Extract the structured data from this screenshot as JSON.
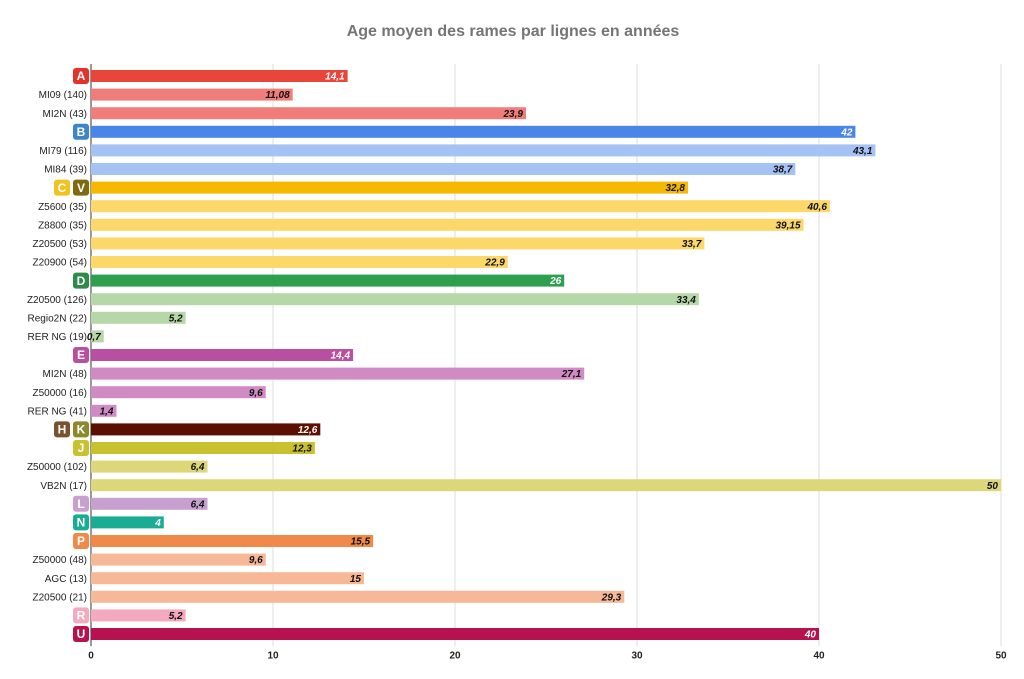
{
  "chart_data": {
    "type": "bar",
    "orientation": "horizontal",
    "title": "Age moyen des rames par lignes en années",
    "categories": [
      "A",
      "MI09 (140)",
      "MI2N (43)",
      "B",
      "MI79 (116)",
      "MI84 (39)",
      [
        "C",
        "V"
      ],
      "Z5600 (35)",
      "Z8800 (35)",
      "Z20500 (53)",
      "Z20900 (54)",
      "D",
      "Z20500 (126)",
      "Regio2N (22)",
      "RER NG (19)",
      "E",
      "MI2N (48)",
      "Z50000 (16)",
      "RER NG (41)",
      [
        "H",
        "K"
      ],
      "J",
      "Z50000 (102)",
      "VB2N (17)",
      "L",
      "N",
      "P",
      "Z50000 (48)",
      "AGC (13)",
      "Z20500 (21)",
      "R",
      "U"
    ],
    "values": [
      14.1,
      11.08,
      23.9,
      42,
      43.1,
      38.7,
      32.8,
      40.6,
      39.15,
      33.7,
      22.9,
      26,
      33.4,
      5.2,
      0.7,
      14.4,
      27.1,
      9.6,
      1.4,
      12.6,
      12.3,
      6.4,
      50,
      6.4,
      4,
      15.5,
      9.6,
      15,
      29.3,
      5.2,
      40
    ],
    "value_labels": [
      "14,1",
      "11,08",
      "23,9",
      "42",
      "43,1",
      "38,7",
      "32,8",
      "40,6",
      "39,15",
      "33,7",
      "22,9",
      "26",
      "33,4",
      "5,2",
      "0,7",
      "14,4",
      "27,1",
      "9,6",
      "1,4",
      "12,6",
      "12,3",
      "6,4",
      "50",
      "6,4",
      "4",
      "15,5",
      "9,6",
      "15",
      "29,3",
      "5,2",
      "40"
    ],
    "colors": [
      "#e8463a",
      "#f07d7a",
      "#f07d7a",
      "#4a86e8",
      "#a4c2f4",
      "#a4c2f4",
      "#f6b800",
      "#fcd86b",
      "#fcd86b",
      "#fcd86b",
      "#fcd86b",
      "#2e9e4f",
      "#b6d7a8",
      "#b6d7a8",
      "#b6d7a8",
      "#b84fa0",
      "#d18bc4",
      "#d18bc4",
      "#d18bc4",
      "#5b0f00",
      "#c8c230",
      "#dcd87a",
      "#dcd87a",
      "#c7a0cf",
      "#1aad94",
      "#f0894a",
      "#f6b896",
      "#f6b896",
      "#f6b896",
      "#f4a9c0",
      "#b5124f"
    ],
    "badge_colors": [
      "#e4322b",
      null,
      null,
      "#3d85c6",
      null,
      null,
      [
        "#f2c31f",
        "#7f6a12"
      ],
      null,
      null,
      null,
      null,
      "#2e8b4a",
      null,
      null,
      null,
      "#b84fa0",
      null,
      null,
      null,
      [
        "#7a5230",
        "#8a8a2a"
      ],
      "#c8c230",
      null,
      null,
      "#c7a0cf",
      "#1aad94",
      "#f0894a",
      null,
      null,
      null,
      "#f4a9c0",
      "#b5124f"
    ],
    "xlim": [
      0,
      50
    ],
    "xticks": [
      0,
      10,
      20,
      30,
      40,
      50
    ],
    "grid": true
  }
}
